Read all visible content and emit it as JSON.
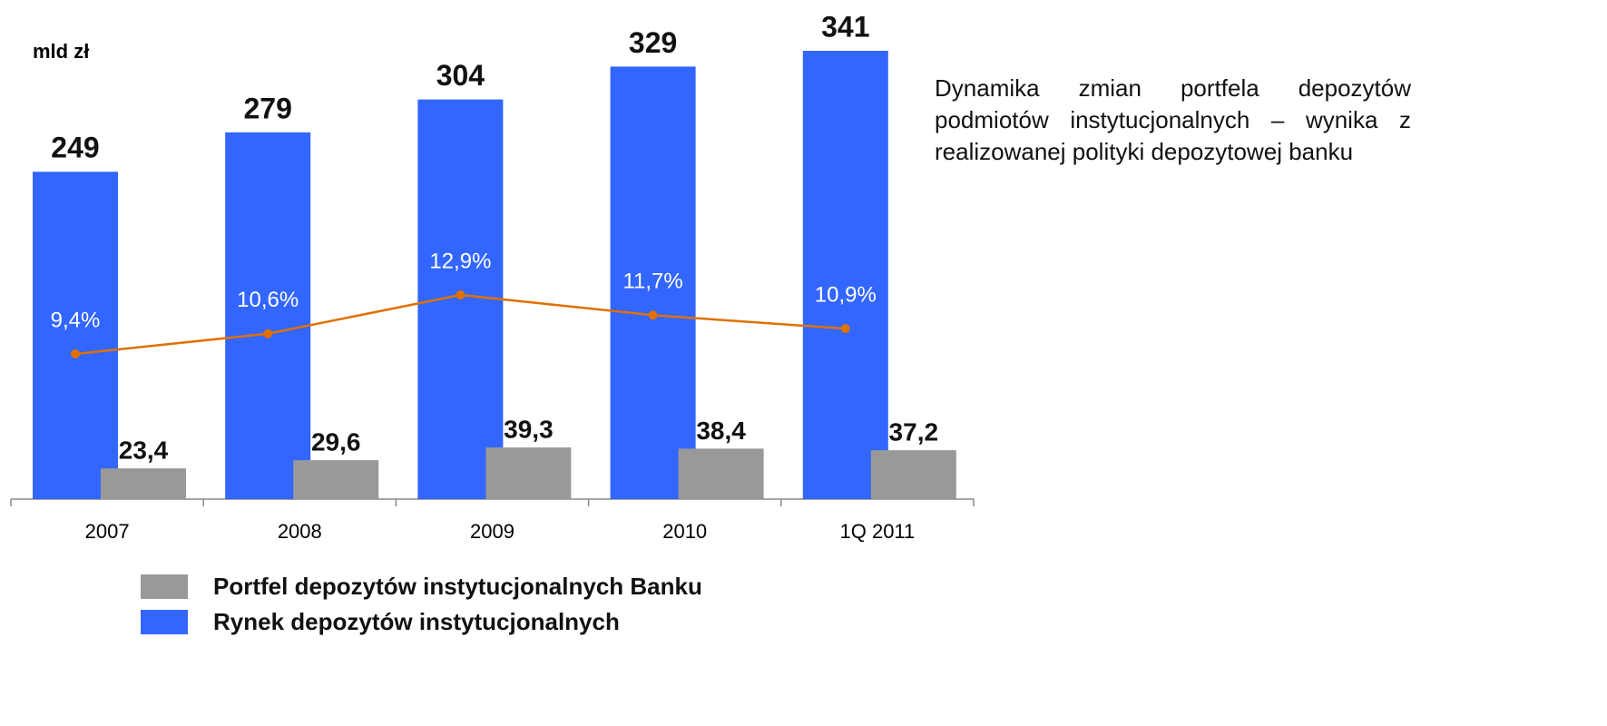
{
  "chart_data": {
    "type": "bar",
    "ylabel": "mld zł",
    "annotation": "Dynamika zmian portfela depozytów podmiotów instytucjonalnych – wynika z realizowanej polityki depozytowej banku",
    "categories": [
      "2007",
      "2008",
      "2009",
      "2010",
      "1Q 2011"
    ],
    "series": [
      {
        "name": "Portfel depozytów instytucjonalnych Banku",
        "color": "#999999",
        "values": [
          23.4,
          29.6,
          39.3,
          38.4,
          37.2
        ],
        "value_labels": [
          "23,4",
          "29,6",
          "39,3",
          "38,4",
          "37,2"
        ]
      },
      {
        "name": "Rynek depozytów instytucjonalnych",
        "color": "#3366ff",
        "values": [
          249,
          279,
          304,
          329,
          341
        ]
      },
      {
        "type": "line",
        "axis": "y2",
        "color": "#e07000",
        "values": [
          9.4,
          10.6,
          12.9,
          11.7,
          10.9
        ],
        "value_labels": [
          "9,4%",
          "10,6%",
          "12,9%",
          "11,7%",
          "10,9%"
        ]
      }
    ]
  }
}
